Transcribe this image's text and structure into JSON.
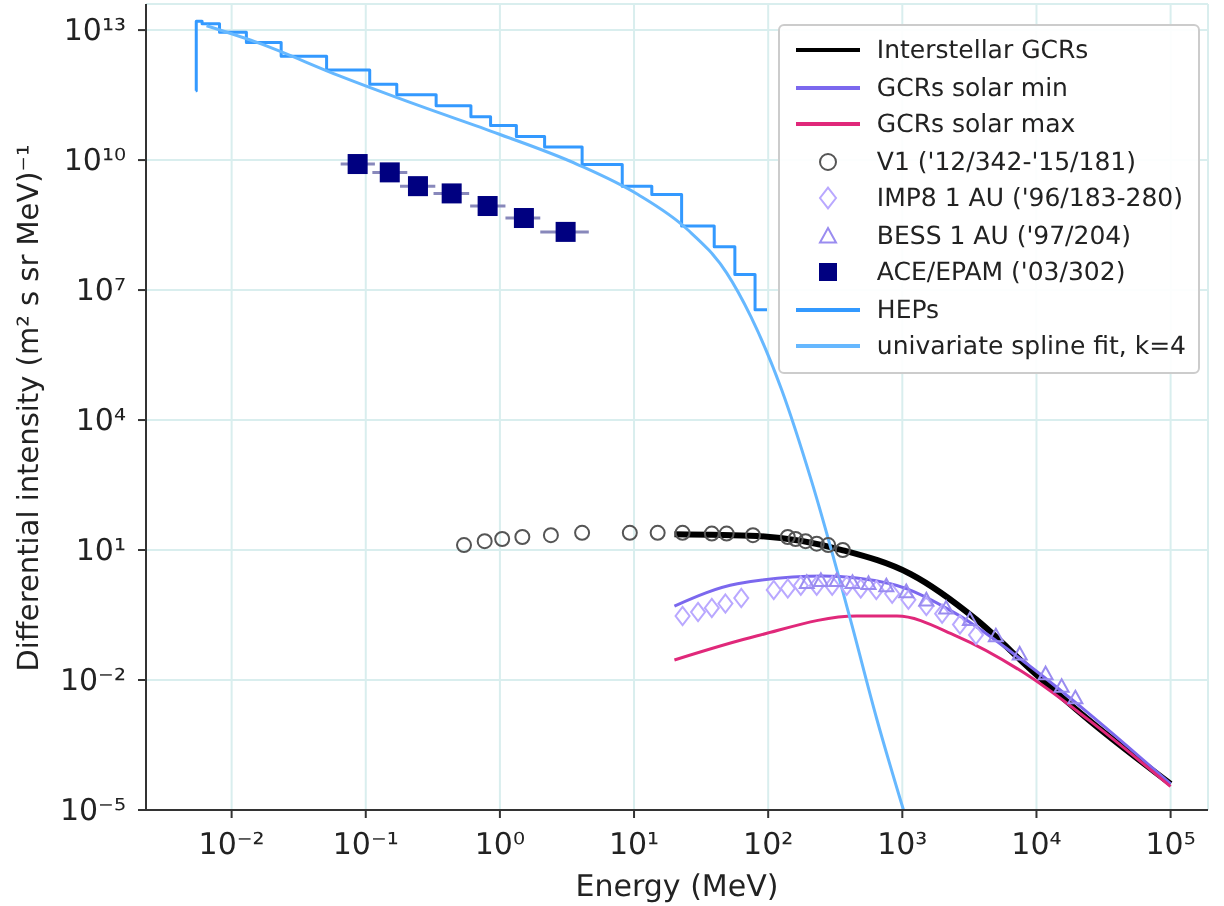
{
  "chart_data": {
    "type": "line",
    "xlabel": "Energy (MeV)",
    "ylabel": "Differential intensity (m² s sr MeV)⁻¹",
    "log": "xy",
    "grid": true,
    "legend": "top right",
    "xlim": [
      0.0023,
      190000
    ],
    "ylim": [
      1e-05,
      40000000000000.0
    ],
    "xticks": [
      {
        "value": 0.01,
        "label": "10⁻²"
      },
      {
        "value": 0.1,
        "label": "10⁻¹"
      },
      {
        "value": 1,
        "label": "10⁰"
      },
      {
        "value": 10,
        "label": "10¹"
      },
      {
        "value": 100,
        "label": "10²"
      },
      {
        "value": 1000,
        "label": "10³"
      },
      {
        "value": 10000,
        "label": "10⁴"
      },
      {
        "value": 100000,
        "label": "10⁵"
      }
    ],
    "yticks": [
      {
        "value": 1e-05,
        "label": "10⁻⁵"
      },
      {
        "value": 0.01,
        "label": "10⁻²"
      },
      {
        "value": 10,
        "label": "10¹"
      },
      {
        "value": 10000,
        "label": "10⁴"
      },
      {
        "value": 10000000.0,
        "label": "10⁷"
      },
      {
        "value": 10000000000.0,
        "label": "10¹⁰"
      },
      {
        "value": 10000000000000.0,
        "label": "10¹³"
      }
    ],
    "series": [
      {
        "name": "Interstellar GCRs",
        "color": "#000000",
        "x": [
          20,
          83,
          355,
          1150,
          3550,
          9800,
          24500,
          100000
        ],
        "values": [
          23,
          21,
          10,
          2.8,
          0.25,
          0.014,
          0.0012,
          4e-05
        ]
      },
      {
        "name": "GCRs solar min",
        "color": "#7b68ee",
        "x": [
          20,
          59,
          257,
          813,
          2510,
          8900,
          24500,
          100000
        ],
        "values": [
          0.51,
          1.66,
          2.5,
          1.66,
          0.34,
          0.021,
          0.0017,
          4e-05
        ]
      },
      {
        "name": "GCRs solar max",
        "color": "#e0287a",
        "x": [
          20,
          83,
          457,
          912,
          2510,
          8900,
          24500,
          100000
        ],
        "values": [
          0.029,
          0.105,
          0.3,
          0.3,
          0.105,
          0.012,
          0.0012,
          3.5e-05
        ]
      },
      {
        "name": "V1 ('12/342-'15/181)",
        "type": "scatter",
        "marker": "circle",
        "color": "#555555",
        "x": [
          0.54,
          0.77,
          1.04,
          1.47,
          2.4,
          4.1,
          9.3,
          15,
          23,
          38,
          49,
          77,
          140,
          160,
          190,
          230,
          280,
          360
        ],
        "values": [
          13,
          16,
          18,
          20,
          22,
          25,
          25,
          25,
          25,
          24,
          24,
          22,
          20,
          18,
          16,
          14,
          13,
          10
        ]
      },
      {
        "name": "IMP8 1 AU ('96/183-280)",
        "type": "scatter",
        "marker": "diamond",
        "color": "#b9a8ff",
        "x": [
          23,
          30,
          38,
          48,
          63,
          110,
          140,
          175,
          230,
          300,
          385,
          490,
          640,
          840,
          1110,
          1510,
          1980,
          2690,
          3540
        ],
        "values": [
          0.3,
          0.37,
          0.46,
          0.58,
          0.78,
          1.2,
          1.3,
          1.5,
          1.5,
          1.5,
          1.5,
          1.3,
          1.2,
          0.98,
          0.71,
          0.51,
          0.34,
          0.19,
          0.11
        ]
      },
      {
        "name": "BESS 1 AU ('97/204)",
        "type": "scatter",
        "marker": "triangle",
        "color": "#9a8cf0",
        "x": [
          194,
          247,
          324,
          425,
          560,
          760,
          1070,
          1510,
          2120,
          3190,
          4980,
          7500,
          11700,
          15400,
          19500
        ],
        "values": [
          1.8,
          2.0,
          2.0,
          1.8,
          1.7,
          1.5,
          1.1,
          0.71,
          0.46,
          0.25,
          0.105,
          0.04,
          0.014,
          0.0072,
          0.0039
        ]
      },
      {
        "name": "ACE/EPAM ('03/302)",
        "type": "scatter",
        "marker": "square",
        "color": "#000080",
        "x": [
          0.087,
          0.151,
          0.245,
          0.437,
          0.81,
          1.51,
          3.09
        ],
        "values": [
          8100000000.0,
          5200000000.0,
          2500000000.0,
          1700000000.0,
          870000000.0,
          460000000.0,
          220000000.0
        ],
        "xerrors": [
          [
            0.065,
            0.117
          ],
          [
            0.112,
            0.204
          ],
          [
            0.18,
            0.33
          ],
          [
            0.32,
            0.59
          ],
          [
            0.6,
            1.1
          ],
          [
            1.1,
            2.0
          ],
          [
            2.0,
            4.6
          ]
        ]
      },
      {
        "name": "HEPs",
        "type": "step",
        "color": "#3399ff",
        "x": [
          0.0054,
          0.0055,
          0.0066,
          0.01,
          0.0166,
          0.033,
          0.079,
          0.145,
          0.2,
          0.56,
          0.66,
          1.1,
          1.6,
          2.9,
          5.8,
          11.5,
          16,
          32,
          49,
          65,
          98
        ],
        "values": [
          400000000000.0,
          16000000000000.0,
          14000000000000.0,
          8900000000000.0,
          5200000000000.0,
          2500000000000.0,
          1200000000000.0,
          560000000000.0,
          320000000000.0,
          180000000000.0,
          100000000000.0,
          63000000000.0,
          35000000000.0,
          20000000000.0,
          7900000000.0,
          2500000000.0,
          1600000000.0,
          300000000.0,
          100000000.0,
          23000000.0,
          3500000.0
        ]
      },
      {
        "name": "univariate spline fit, k=4",
        "color": "#66b8ff",
        "x": [
          0.0065,
          0.016,
          0.063,
          0.25,
          0.98,
          3.8,
          10.7,
          25,
          49,
          74,
          126,
          210,
          410,
          645,
          1020
        ],
        "values": [
          12600000000000.0,
          5000000000000.0,
          890000000000.0,
          180000000000.0,
          40000000000.0,
          7900000000.0,
          1600000000.0,
          250000000.0,
          25000000.0,
          2500000.0,
          50000.0,
          400,
          0.25,
          0.00126,
          1e-05
        ]
      }
    ]
  }
}
